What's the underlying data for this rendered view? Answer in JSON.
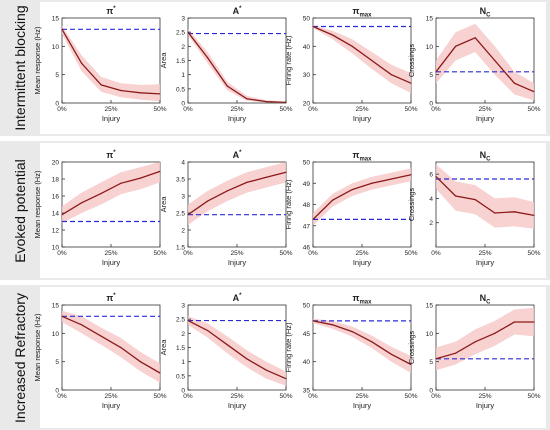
{
  "rows": [
    {
      "label": "Intermittent blocking"
    },
    {
      "label": "Evoked potential"
    },
    {
      "label": "Increased Refractory"
    }
  ],
  "colors": {
    "line": "#8b1a1a",
    "band": "#f7c9c9",
    "reference": "#2b2bd6",
    "axis": "#333333",
    "background": "#e9e9e9"
  },
  "chart_data": [
    {
      "type": "line",
      "row": "Intermittent blocking",
      "title": "π*",
      "title_main": "π",
      "title_sup": "*",
      "ylabel": "Mean response (Hz)",
      "xlabel": "Injury",
      "x": [
        0,
        10,
        20,
        30,
        40,
        50
      ],
      "xticks": [
        "0%",
        "25%",
        "50%"
      ],
      "ylim": [
        0,
        15
      ],
      "yticks": [
        "0",
        "5",
        "10",
        "15"
      ],
      "values": [
        13,
        7,
        3.2,
        2.2,
        1.8,
        1.6
      ],
      "lower": [
        12.2,
        5.6,
        2.0,
        1.0,
        0.6,
        0.3
      ],
      "upper": [
        13.6,
        8.4,
        4.6,
        3.5,
        3.2,
        3.3
      ],
      "reference": 13
    },
    {
      "type": "line",
      "row": "Intermittent blocking",
      "title": "A*",
      "title_main": "A",
      "title_sup": "*",
      "ylabel": "Area",
      "xlabel": "Injury",
      "x": [
        0,
        10,
        20,
        30,
        40,
        50
      ],
      "xticks": [
        "0%",
        "25%",
        "50%"
      ],
      "ylim": [
        0,
        3
      ],
      "yticks": [
        "0",
        "0.5",
        "1",
        "1.5",
        "2",
        "2.5",
        "3"
      ],
      "values": [
        2.5,
        1.6,
        0.6,
        0.15,
        0.05,
        0.02
      ],
      "lower": [
        2.4,
        1.4,
        0.45,
        0.08,
        0.02,
        0.0
      ],
      "upper": [
        2.6,
        1.8,
        0.75,
        0.25,
        0.1,
        0.05
      ],
      "reference": 2.45
    },
    {
      "type": "line",
      "row": "Intermittent blocking",
      "title": "πmax",
      "title_main": "π",
      "title_sub": "max",
      "ylabel": "Firing rate (Hz)",
      "xlabel": "Injury",
      "x": [
        0,
        10,
        20,
        30,
        40,
        50
      ],
      "xticks": [
        "0%",
        "25%",
        "50%"
      ],
      "ylim": [
        20,
        50
      ],
      "yticks": [
        "20",
        "30",
        "40",
        "50"
      ],
      "values": [
        47,
        44,
        40,
        35,
        30,
        27
      ],
      "lower": [
        46.5,
        42.5,
        37.5,
        32,
        27,
        23.5
      ],
      "upper": [
        47.5,
        45.5,
        42.5,
        38,
        33.5,
        30.5
      ],
      "reference": 47
    },
    {
      "type": "line",
      "row": "Intermittent blocking",
      "title": "NC",
      "title_main": "N",
      "title_sub": "C",
      "ylabel": "Crossings",
      "xlabel": "Injury",
      "x": [
        0,
        10,
        20,
        30,
        40,
        50
      ],
      "xticks": [
        "0%",
        "25%",
        "50%"
      ],
      "ylim": [
        0,
        15
      ],
      "yticks": [
        "0",
        "5",
        "10",
        "15"
      ],
      "values": [
        5.5,
        10,
        11.5,
        7.5,
        3.5,
        2
      ],
      "lower": [
        3.5,
        7.5,
        9,
        5,
        1.5,
        0.5
      ],
      "upper": [
        7.5,
        12.5,
        14,
        10,
        5.5,
        3.5
      ],
      "reference": 5.5
    },
    {
      "type": "line",
      "row": "Evoked potential",
      "title": "π*",
      "title_main": "π",
      "title_sup": "*",
      "ylabel": "Mean response (Hz)",
      "xlabel": "Injury",
      "x": [
        0,
        10,
        20,
        30,
        40,
        50
      ],
      "xticks": [
        "0%",
        "25%",
        "50%"
      ],
      "ylim": [
        10,
        20
      ],
      "yticks": [
        "10",
        "12",
        "14",
        "16",
        "18",
        "20"
      ],
      "values": [
        13.8,
        15.2,
        16.3,
        17.5,
        18.1,
        18.9
      ],
      "lower": [
        12.8,
        14,
        15,
        16.2,
        16.8,
        17.6
      ],
      "upper": [
        14.8,
        16.4,
        17.6,
        18.8,
        19.4,
        20
      ],
      "reference": 13
    },
    {
      "type": "line",
      "row": "Evoked potential",
      "title": "A*",
      "title_main": "A",
      "title_sup": "*",
      "ylabel": "Area",
      "xlabel": "Injury",
      "x": [
        0,
        10,
        20,
        30,
        40,
        50
      ],
      "xticks": [
        "0%",
        "25%",
        "50%"
      ],
      "ylim": [
        1.5,
        4
      ],
      "yticks": [
        "1.5",
        "2",
        "2.5",
        "3",
        "3.5",
        "4"
      ],
      "values": [
        2.45,
        2.85,
        3.15,
        3.4,
        3.55,
        3.7
      ],
      "lower": [
        2.15,
        2.55,
        2.85,
        3.1,
        3.25,
        3.4
      ],
      "upper": [
        2.75,
        3.15,
        3.45,
        3.7,
        3.85,
        4.0
      ],
      "reference": 2.45
    },
    {
      "type": "line",
      "row": "Evoked potential",
      "title": "πmax",
      "title_main": "π",
      "title_sub": "max",
      "ylabel": "Firing rate (Hz)",
      "xlabel": "Injury",
      "x": [
        0,
        10,
        20,
        30,
        40,
        50
      ],
      "xticks": [
        "0%",
        "25%",
        "50%"
      ],
      "ylim": [
        46,
        50
      ],
      "yticks": [
        "46",
        "47",
        "48",
        "49",
        "50"
      ],
      "values": [
        47.3,
        48.2,
        48.7,
        49.0,
        49.2,
        49.4
      ],
      "lower": [
        47.0,
        47.9,
        48.4,
        48.7,
        48.9,
        49.1
      ],
      "upper": [
        47.6,
        48.5,
        49.0,
        49.3,
        49.5,
        49.7
      ],
      "reference": 47.3
    },
    {
      "type": "line",
      "row": "Evoked potential",
      "title": "NC",
      "title_main": "N",
      "title_sub": "C",
      "ylabel": "Crossings",
      "xlabel": "Injury",
      "x": [
        0,
        10,
        20,
        30,
        40,
        50
      ],
      "xticks": [
        "0%",
        "25%",
        "50%"
      ],
      "ylim": [
        0,
        7
      ],
      "yticks": [
        "2",
        "4",
        "6"
      ],
      "values": [
        5.8,
        4.2,
        3.9,
        2.8,
        2.9,
        2.6
      ],
      "lower": [
        4.8,
        3.0,
        2.7,
        1.6,
        1.7,
        1.5
      ],
      "upper": [
        6.8,
        5.4,
        5.1,
        4.0,
        4.1,
        3.7
      ],
      "reference": 5.6
    },
    {
      "type": "line",
      "row": "Increased Refractory",
      "title": "π*",
      "title_main": "π",
      "title_sup": "*",
      "ylabel": "Mean response (Hz)",
      "xlabel": "Injury",
      "x": [
        0,
        10,
        20,
        30,
        40,
        50
      ],
      "xticks": [
        "0%",
        "25%",
        "50%"
      ],
      "ylim": [
        0,
        15
      ],
      "yticks": [
        "0",
        "5",
        "10",
        "15"
      ],
      "values": [
        13,
        11.5,
        9.5,
        7.5,
        5,
        3
      ],
      "lower": [
        12,
        10,
        8,
        5.8,
        3.3,
        1.3
      ],
      "upper": [
        14,
        13,
        11,
        9.2,
        6.7,
        4.7
      ],
      "reference": 13
    },
    {
      "type": "line",
      "row": "Increased Refractory",
      "title": "A*",
      "title_main": "A",
      "title_sup": "*",
      "ylabel": "Area",
      "xlabel": "Injury",
      "x": [
        0,
        10,
        20,
        30,
        40,
        50
      ],
      "xticks": [
        "0%",
        "25%",
        "50%"
      ],
      "ylim": [
        0,
        3
      ],
      "yticks": [
        "0",
        "0.5",
        "1",
        "1.5",
        "2",
        "2.5",
        "3"
      ],
      "values": [
        2.45,
        2.1,
        1.6,
        1.1,
        0.7,
        0.4
      ],
      "lower": [
        2.3,
        1.85,
        1.3,
        0.8,
        0.4,
        0.15
      ],
      "upper": [
        2.6,
        2.35,
        1.9,
        1.4,
        1.0,
        0.65
      ],
      "reference": 2.45
    },
    {
      "type": "line",
      "row": "Increased Refractory",
      "title": "πmax",
      "title_main": "π",
      "title_sub": "max",
      "ylabel": "Firing rate (Hz)",
      "xlabel": "Injury",
      "x": [
        0,
        10,
        20,
        30,
        40,
        50
      ],
      "xticks": [
        "0%",
        "25%",
        "50%"
      ],
      "ylim": [
        35,
        50
      ],
      "yticks": [
        "35",
        "40",
        "45",
        "50"
      ],
      "values": [
        47.2,
        46.5,
        45.3,
        43.5,
        41.3,
        39.5
      ],
      "lower": [
        46.8,
        45.8,
        44.4,
        42.4,
        40.0,
        38.0
      ],
      "upper": [
        47.6,
        47.2,
        46.2,
        44.6,
        42.6,
        41.0
      ],
      "reference": 47.2
    },
    {
      "type": "line",
      "row": "Increased Refractory",
      "title": "NC",
      "title_main": "N",
      "title_sub": "C",
      "ylabel": "Crossings",
      "xlabel": "Injury",
      "x": [
        0,
        10,
        20,
        30,
        40,
        50
      ],
      "xticks": [
        "0%",
        "25%",
        "50%"
      ],
      "ylim": [
        0,
        15
      ],
      "yticks": [
        "0",
        "5",
        "10",
        "15"
      ],
      "values": [
        5.5,
        6.5,
        8.5,
        10,
        12,
        12
      ],
      "lower": [
        3.5,
        4.5,
        6.3,
        7.8,
        9.8,
        9.5
      ],
      "upper": [
        7.5,
        8.5,
        10.7,
        12.2,
        14.2,
        14.5
      ],
      "reference": 5.5
    }
  ]
}
